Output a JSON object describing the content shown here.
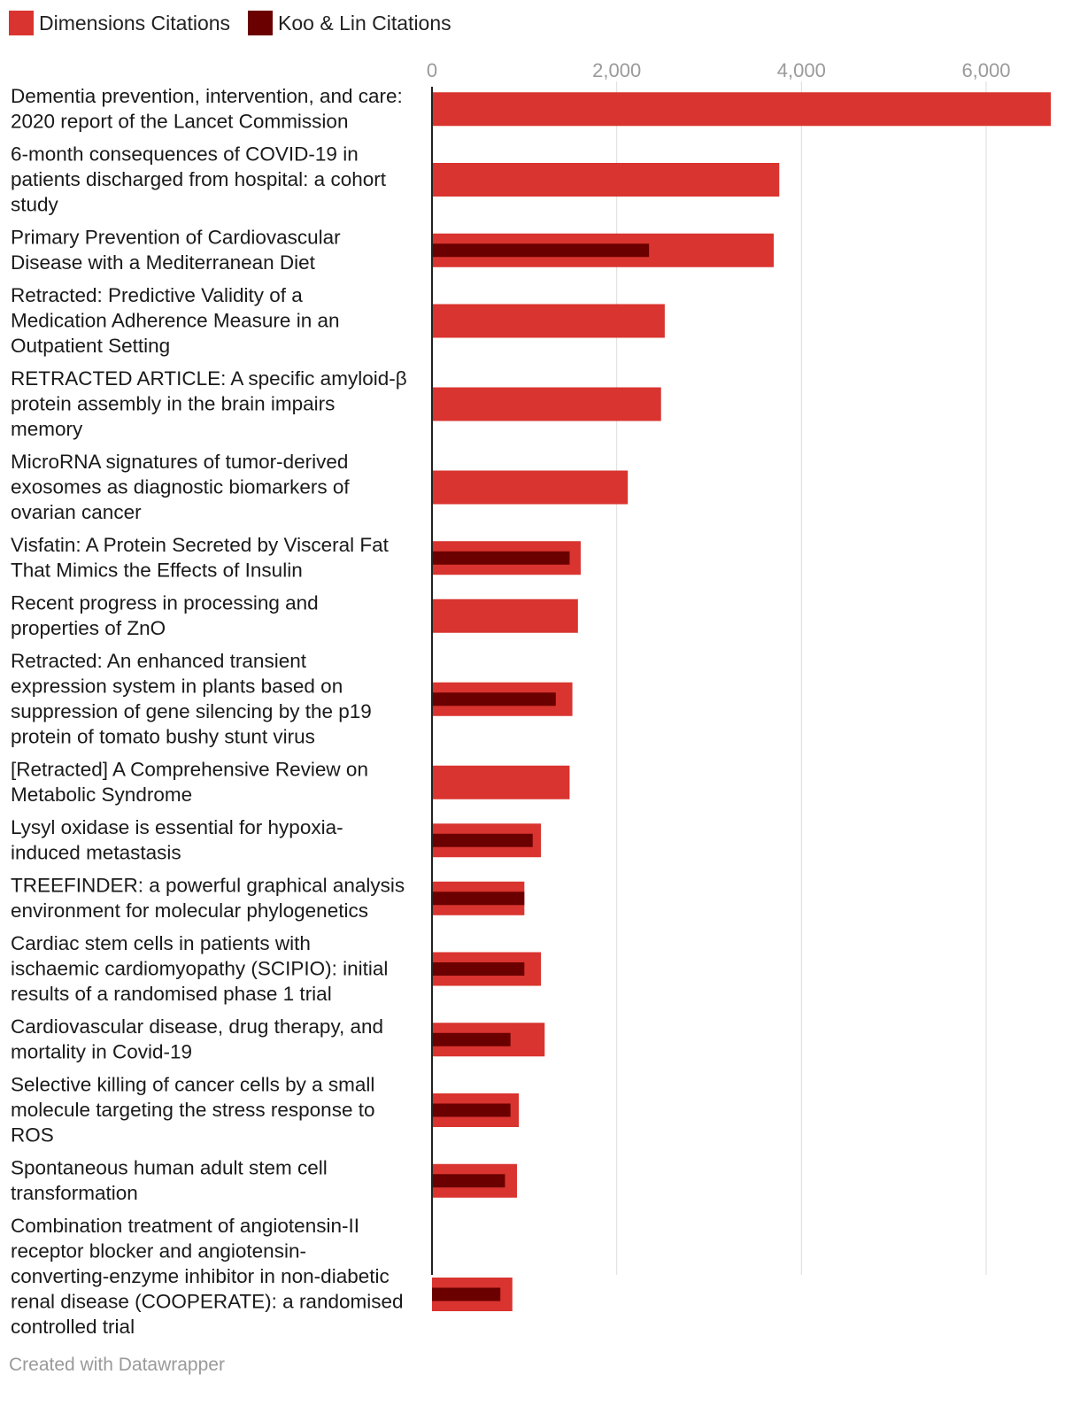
{
  "chart_data": {
    "type": "bar",
    "orientation": "horizontal",
    "xlim": [
      0,
      6700
    ],
    "ticks": [
      0,
      2000,
      4000,
      6000
    ],
    "tick_labels": [
      "0",
      "2,000",
      "4,000",
      "6,000"
    ],
    "grid": true,
    "legend_position": "top-left",
    "series": [
      {
        "name": "Dimensions Citations",
        "color": "#d9342f",
        "values": [
          6700,
          3760,
          3700,
          2520,
          2480,
          2120,
          1610,
          1580,
          1520,
          1490,
          1180,
          1000,
          1180,
          1220,
          940,
          920,
          870
        ]
      },
      {
        "name": "Koo & Lin Citations",
        "color": "#6b0000",
        "values": [
          null,
          null,
          2350,
          null,
          null,
          null,
          1490,
          null,
          1340,
          null,
          1090,
          1000,
          1000,
          850,
          850,
          790,
          740
        ]
      }
    ],
    "categories": [
      "Dementia prevention, intervention, and care: 2020 report of the Lancet Commission",
      "6-month consequences of COVID-19 in patients discharged from hospital: a cohort study",
      "Primary Prevention of Cardiovascular Disease with a Mediterranean Diet",
      "Retracted: Predictive Validity of a Medication Adherence Measure in an Outpatient Setting",
      "RETRACTED ARTICLE: A specific amyloid-β protein assembly in the brain impairs memory",
      "MicroRNA signatures of tumor-derived exosomes as diagnostic biomarkers of ovarian cancer",
      "Visfatin: A Protein Secreted by Visceral Fat That Mimics the Effects of Insulin",
      "Recent progress in processing and properties of ZnO",
      "Retracted: An enhanced transient expression system in plants based on suppression of gene silencing by the p19 protein of tomato bushy stunt virus",
      "[Retracted] A Comprehensive Review on Metabolic Syndrome",
      "Lysyl oxidase is essential for hypoxia-induced metastasis",
      "TREEFINDER: a powerful graphical analysis environment for molecular phylogenetics",
      "Cardiac stem cells in patients with ischaemic cardiomyopathy (SCIPIO): initial results of a randomised phase 1 trial",
      "Cardiovascular disease, drug therapy, and mortality in Covid-19",
      "Selective killing of cancer cells by a small molecule targeting the stress response to ROS",
      "Spontaneous human adult stem cell transformation",
      "Combination treatment of angiotensin-II receptor blocker and angiotensin-converting-enzyme inhibitor in non-diabetic renal disease (COOPERATE): a randomised controlled trial"
    ],
    "category_lines": [
      [
        "Dementia prevention, intervention, and care:",
        "2020 report of the Lancet Commission"
      ],
      [
        "6-month consequences of COVID-19 in",
        "patients discharged from hospital: a cohort",
        "study"
      ],
      [
        "Primary Prevention of Cardiovascular",
        "Disease with a Mediterranean Diet"
      ],
      [
        "Retracted: Predictive Validity of a",
        "Medication Adherence Measure in an",
        "Outpatient Setting"
      ],
      [
        "RETRACTED ARTICLE: A specific amyloid-β",
        "protein assembly in the brain impairs",
        "memory"
      ],
      [
        "MicroRNA signatures of tumor-derived",
        "exosomes as diagnostic biomarkers of",
        "ovarian cancer"
      ],
      [
        "Visfatin: A Protein Secreted by Visceral Fat",
        "That Mimics the Effects of Insulin"
      ],
      [
        "Recent progress in processing and",
        "properties of ZnO"
      ],
      [
        "Retracted: An enhanced transient",
        "expression system in plants based on",
        "suppression of gene silencing by the p19",
        "protein of tomato bushy stunt virus"
      ],
      [
        "[Retracted] A Comprehensive Review on",
        "Metabolic Syndrome"
      ],
      [
        "Lysyl oxidase is essential for hypoxia-",
        "induced metastasis"
      ],
      [
        "TREEFINDER: a powerful graphical analysis",
        "environment for molecular phylogenetics"
      ],
      [
        "Cardiac stem cells in patients with",
        "ischaemic cardiomyopathy (SCIPIO): initial",
        "results of a randomised phase 1 trial"
      ],
      [
        "Cardiovascular disease, drug therapy, and",
        "mortality in Covid-19"
      ],
      [
        "Selective killing of cancer cells by a small",
        "molecule targeting the stress response to",
        "ROS"
      ],
      [
        "Spontaneous human adult stem cell",
        "transformation"
      ],
      [
        "Combination treatment of angiotensin-II",
        "receptor blocker and angiotensin-",
        "converting-enzyme inhibitor in non-diabetic",
        "renal disease (COOPERATE): a randomised",
        "controlled trial"
      ]
    ]
  },
  "legend": {
    "items": [
      {
        "label": "Dimensions Citations",
        "color": "#d9342f"
      },
      {
        "label": "Koo & Lin Citations",
        "color": "#6b0000"
      }
    ]
  },
  "footer": {
    "credit": "Created with Datawrapper"
  }
}
